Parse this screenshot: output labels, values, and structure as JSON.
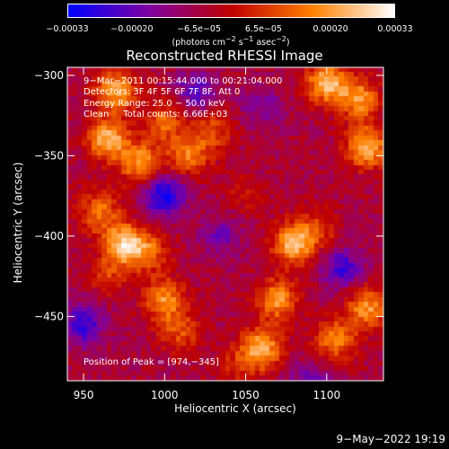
{
  "colorbar": {
    "ticks": [
      "−0.00033",
      "−0.00020",
      "−6.5e−05",
      "6.5e−05",
      "0.00020",
      "0.00033"
    ],
    "tick_values": [
      -0.00033,
      -0.0002,
      -6.5e-05,
      6.5e-05,
      0.0002,
      0.00033
    ],
    "range": [
      -0.00033,
      0.00033
    ],
    "unit_html": "(photons cm<sup>−2</sup> s<sup>−1</sup> asec<sup>−2</sup>)"
  },
  "annotation": {
    "line1": "9−Mar−2011 00:15:44.000 to 00:21:04.000",
    "line2": "Detectors: 3F 4F 5F 6F 7F 8F, Att 0",
    "line3": "Energy Range: 25.0 − 50.0 keV",
    "line4": "Clean     Total counts: 6.66E+03",
    "peak": "Position of Peak = [974,−345]"
  },
  "footer": "9−May−2022 19:19",
  "chart_data": {
    "type": "heatmap",
    "title": "Reconstructed RHESSI Image",
    "xlabel": "Heliocentric X (arcsec)",
    "ylabel": "Heliocentric Y (arcsec)",
    "xlim": [
      940,
      1135
    ],
    "ylim": [
      -490,
      -295
    ],
    "xticks": [
      950,
      1000,
      1050,
      1100
    ],
    "yticks": [
      -300,
      -350,
      -400,
      -450
    ],
    "xtick_labels": [
      "950",
      "1000",
      "1050",
      "1100"
    ],
    "ytick_labels": [
      "−300",
      "−350",
      "−400",
      "−450"
    ],
    "colormap": [
      "#0000ff",
      "#8000a0",
      "#c00000",
      "#ff8000",
      "#ffffff"
    ],
    "peak_position": [
      974,
      -345
    ],
    "blobs": [
      {
        "x": 970,
        "y": -310,
        "v": 0.00028
      },
      {
        "x": 965,
        "y": -340,
        "v": 0.0003
      },
      {
        "x": 985,
        "y": -355,
        "v": 0.00025
      },
      {
        "x": 1000,
        "y": -330,
        "v": 0.00018
      },
      {
        "x": 1015,
        "y": -350,
        "v": 0.0002
      },
      {
        "x": 1030,
        "y": -335,
        "v": 0.00015
      },
      {
        "x": 1100,
        "y": -305,
        "v": 0.0003
      },
      {
        "x": 1120,
        "y": -315,
        "v": 0.00025
      },
      {
        "x": 1125,
        "y": -345,
        "v": 0.0003
      },
      {
        "x": 975,
        "y": -405,
        "v": 0.0003
      },
      {
        "x": 960,
        "y": -385,
        "v": 0.0002
      },
      {
        "x": 990,
        "y": -410,
        "v": 0.00018
      },
      {
        "x": 965,
        "y": -425,
        "v": 0.00012
      },
      {
        "x": 1080,
        "y": -405,
        "v": 0.0003
      },
      {
        "x": 1070,
        "y": -440,
        "v": 0.00025
      },
      {
        "x": 1060,
        "y": -470,
        "v": 0.00028
      },
      {
        "x": 1045,
        "y": -480,
        "v": 0.0001
      },
      {
        "x": 1125,
        "y": -445,
        "v": 0.00025
      },
      {
        "x": 1105,
        "y": -465,
        "v": 0.00022
      },
      {
        "x": 1000,
        "y": -440,
        "v": 0.00024
      },
      {
        "x": 1010,
        "y": -460,
        "v": 0.00015
      },
      {
        "x": 1095,
        "y": -395,
        "v": 0.00012
      },
      {
        "x": 1050,
        "y": -375,
        "v": 8e-05
      },
      {
        "x": 1035,
        "y": -400,
        "v": -0.00012
      },
      {
        "x": 1000,
        "y": -375,
        "v": -0.00025
      },
      {
        "x": 950,
        "y": -455,
        "v": -0.0002
      },
      {
        "x": 1020,
        "y": -310,
        "v": -0.00015
      },
      {
        "x": 1060,
        "y": -320,
        "v": -0.0001
      },
      {
        "x": 1110,
        "y": -420,
        "v": -0.00018
      },
      {
        "x": 1090,
        "y": -490,
        "v": -0.00012
      }
    ]
  }
}
